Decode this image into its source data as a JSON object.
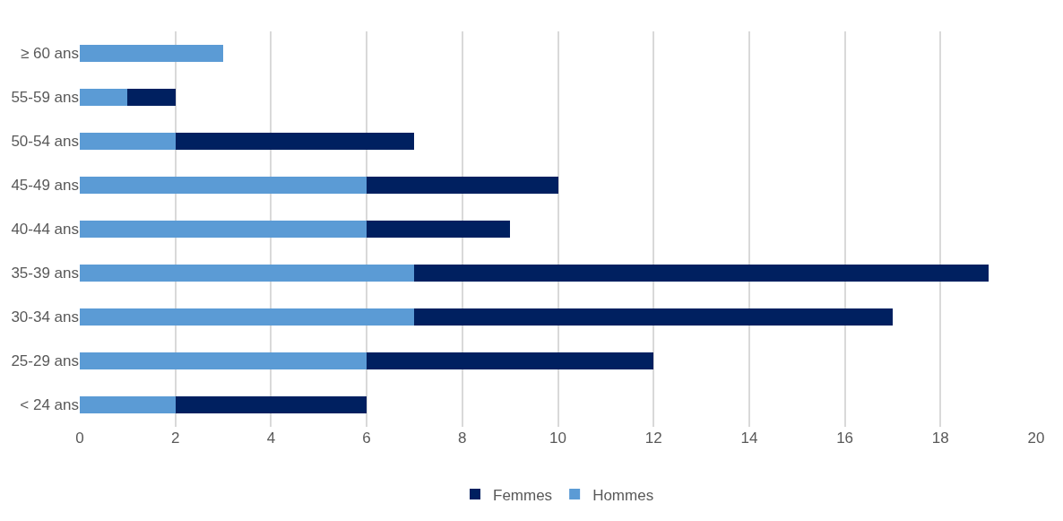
{
  "chart_data": {
    "type": "bar",
    "orientation": "horizontal",
    "stacked": true,
    "categories": [
      "≥ 60 ans",
      "55-59 ans",
      "50-54 ans",
      "45-49 ans",
      "40-44 ans",
      "35-39 ans",
      "30-34 ans",
      "25-29 ans",
      "< 24 ans"
    ],
    "series": [
      {
        "name": "Hommes",
        "color": "#5b9bd5",
        "values": [
          3,
          1,
          2,
          6,
          6,
          7,
          7,
          6,
          2
        ]
      },
      {
        "name": "Femmes",
        "color": "#002060",
        "values": [
          0,
          1,
          5,
          4,
          3,
          12,
          10,
          6,
          4
        ]
      }
    ],
    "xlim": [
      0,
      20
    ],
    "xticks": [
      0,
      2,
      4,
      6,
      8,
      10,
      12,
      14,
      16,
      18,
      20
    ],
    "grid": "x",
    "legend": "bottom"
  }
}
